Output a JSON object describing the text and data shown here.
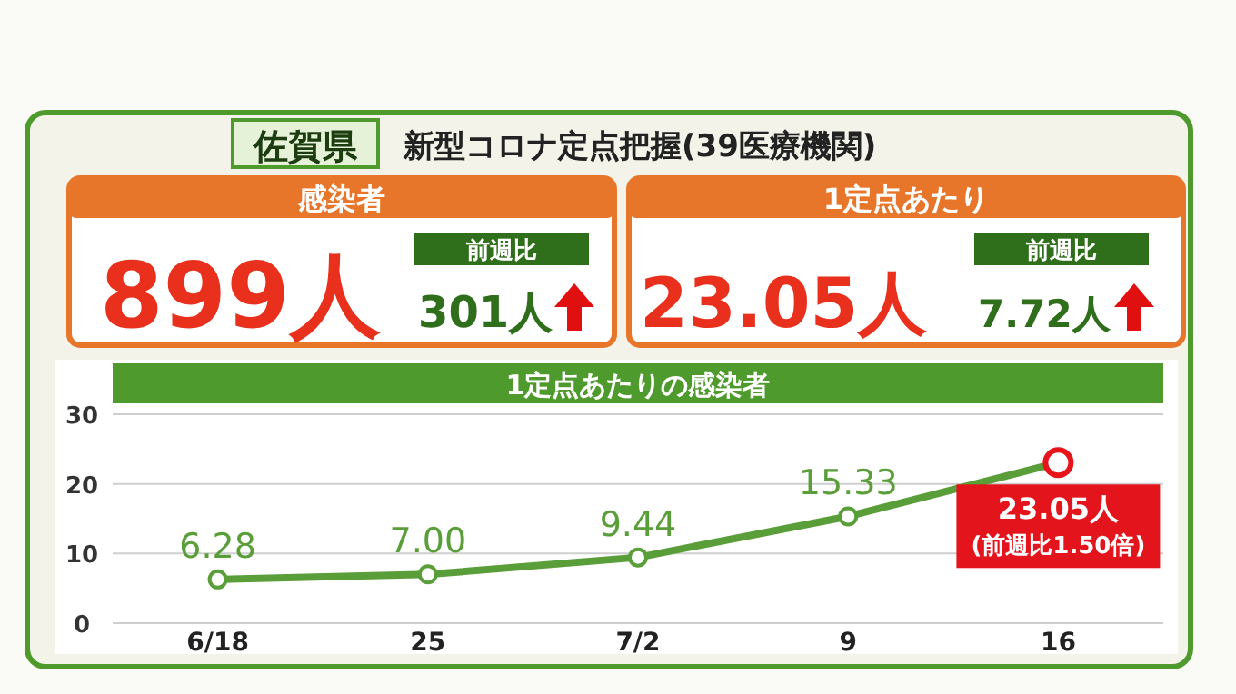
{
  "chart_data": [
    {
      "type": "other",
      "title": "佐賀県",
      "subtitle": "新型コロナ定点把握(39医療機関)",
      "annotations": [
        "感染者",
        "899人",
        "前週比",
        "301人",
        "1定点あたり",
        "23.05人",
        "前週比",
        "7.72人"
      ]
    },
    {
      "type": "line",
      "title": "1定点あたりの感染者",
      "categories": [
        "6/18",
        "25",
        "7/2",
        "9",
        "16"
      ],
      "series": [
        {
          "color": "#5a9e3a",
          "values": [
            6.28,
            7.0,
            9.44,
            15.33,
            23.05
          ],
          "value_labels": [
            "6.28",
            "7.00",
            "9.44",
            "15.33",
            null
          ],
          "colors": [
            "#5a9e3a",
            "#5a9e3a",
            "#5a9e3a",
            "#5a9e3a",
            "#e8141c"
          ]
        }
      ],
      "ylim": [
        0,
        30
      ],
      "yticks": [
        0,
        10,
        20,
        30
      ],
      "grid": "y",
      "marker": "circle",
      "line_style": "solid",
      "annotations": [
        {
          "text": "23.05人",
          "x": "16",
          "y": 23.05
        },
        {
          "text": "(前週比1.50倍)",
          "x": "16",
          "y": 23.05
        }
      ]
    }
  ]
}
